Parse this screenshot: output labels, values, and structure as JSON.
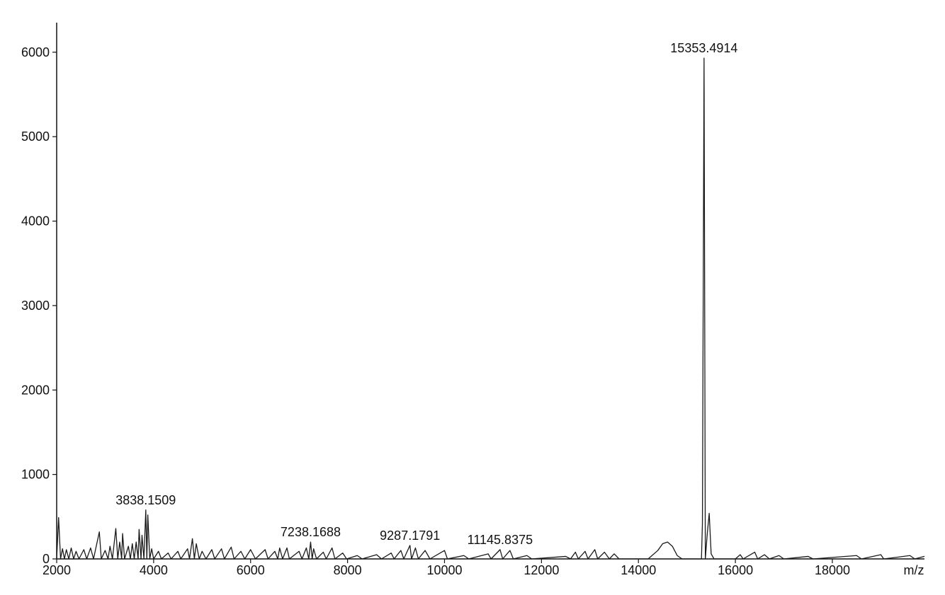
{
  "chart_data": {
    "type": "line",
    "x_label": "m/z",
    "color": "#1a1a1a",
    "xlim": [
      2000,
      19900
    ],
    "ylim": [
      0,
      6350
    ],
    "xticks": [
      2000,
      4000,
      6000,
      8000,
      10000,
      12000,
      14000,
      16000,
      18000
    ],
    "yticks": [
      0,
      1000,
      2000,
      3000,
      4000,
      5000,
      6000
    ],
    "x": [
      2000,
      2040,
      2080,
      2120,
      2160,
      2200,
      2250,
      2300,
      2350,
      2400,
      2460,
      2560,
      2620,
      2700,
      2760,
      2880,
      2920,
      3000,
      3060,
      3100,
      3150,
      3220,
      3260,
      3300,
      3340,
      3360,
      3400,
      3480,
      3520,
      3560,
      3600,
      3640,
      3680,
      3700,
      3740,
      3760,
      3800,
      3838.1509,
      3860,
      3880,
      3920,
      3960,
      4000,
      4100,
      4160,
      4300,
      4360,
      4500,
      4560,
      4700,
      4740,
      4800,
      4840,
      4880,
      4940,
      5000,
      5080,
      5200,
      5260,
      5400,
      5460,
      5600,
      5660,
      5800,
      5880,
      6000,
      6100,
      6300,
      6360,
      6500,
      6560,
      6600,
      6660,
      6750,
      6800,
      7000,
      7060,
      7150,
      7200,
      7238.1688,
      7270,
      7300,
      7360,
      7500,
      7560,
      7680,
      7740,
      7900,
      7980,
      8200,
      8300,
      8600,
      8700,
      8900,
      8960,
      9100,
      9160,
      9287.1791,
      9320,
      9400,
      9460,
      9600,
      9700,
      10000,
      10060,
      10400,
      10500,
      10900,
      10960,
      11145.8375,
      11200,
      11350,
      11420,
      11700,
      11800,
      12500,
      12600,
      12700,
      12760,
      12900,
      12960,
      13100,
      13160,
      13300,
      13400,
      13500,
      13600,
      14200,
      14400,
      14500,
      14600,
      14700,
      14800,
      14900,
      15300,
      15320,
      15353.4914,
      15380,
      15420,
      15460,
      15500,
      15560,
      16000,
      16100,
      16160,
      16400,
      16460,
      16600,
      16700,
      16900,
      17000,
      17500,
      17600,
      18500,
      18600,
      19000,
      19060,
      19600,
      19700,
      19900
    ],
    "values": [
      0,
      490,
      0,
      120,
      0,
      110,
      0,
      130,
      0,
      90,
      0,
      110,
      0,
      130,
      0,
      320,
      0,
      100,
      0,
      150,
      0,
      360,
      0,
      200,
      0,
      300,
      0,
      150,
      0,
      180,
      0,
      200,
      0,
      350,
      0,
      280,
      0,
      580,
      0,
      520,
      0,
      120,
      0,
      90,
      0,
      70,
      0,
      90,
      0,
      120,
      0,
      240,
      0,
      180,
      0,
      90,
      0,
      110,
      0,
      120,
      0,
      140,
      0,
      90,
      0,
      110,
      0,
      110,
      0,
      90,
      0,
      130,
      0,
      130,
      0,
      90,
      0,
      130,
      0,
      200,
      0,
      120,
      0,
      80,
      0,
      130,
      0,
      70,
      0,
      40,
      0,
      50,
      0,
      70,
      0,
      100,
      0,
      160,
      0,
      130,
      0,
      100,
      0,
      100,
      0,
      40,
      0,
      60,
      0,
      110,
      0,
      100,
      0,
      40,
      0,
      30,
      0,
      80,
      0,
      90,
      0,
      110,
      0,
      80,
      0,
      60,
      0,
      0,
      100,
      180,
      200,
      150,
      40,
      0,
      0,
      420,
      5930,
      0,
      300,
      540,
      60,
      0,
      0,
      50,
      0,
      80,
      0,
      50,
      0,
      40,
      0,
      30,
      0,
      40,
      0,
      50,
      0,
      40,
      0,
      30
    ],
    "annotations": [
      {
        "text": "3838.1509",
        "x": 3838.1509,
        "y": 580
      },
      {
        "text": "7238.1688",
        "x": 7238.1688,
        "y": 200
      },
      {
        "text": "9287.1791",
        "x": 9287.1791,
        "y": 160
      },
      {
        "text": "11145.8375",
        "x": 11145.8375,
        "y": 110
      },
      {
        "text": "15353.4914",
        "x": 15353.4914,
        "y": 5930
      }
    ]
  }
}
